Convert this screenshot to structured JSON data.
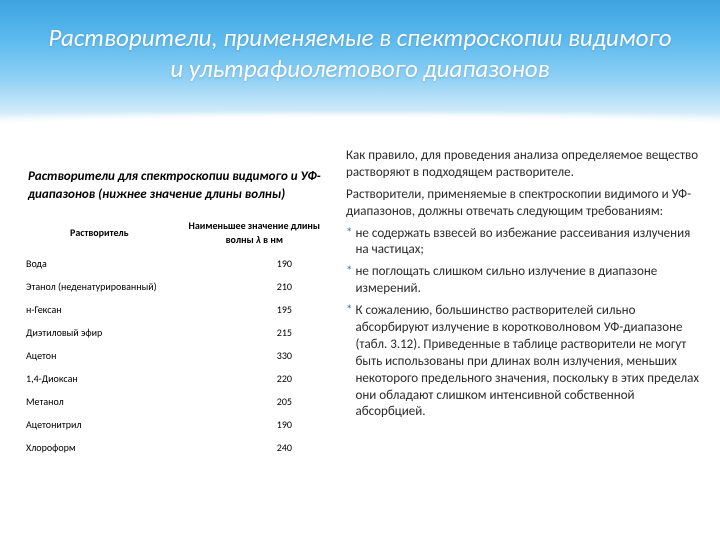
{
  "title": "Растворители, применяемые в спектроскопии видимого и ультрафиолетового диапазонов",
  "table": {
    "caption": "Растворители для спектроскопии видимого и УФ-диапазонов (нижнее значение длины волны)",
    "col1": "Растворитель",
    "col2_a": "Наименьшее значение длины",
    "col2_b": "волны",
    "col2_c": " в нм",
    "rows": [
      {
        "name": "Вода",
        "val": "190"
      },
      {
        "name": "Этанол (неденатурированный)",
        "val": "210"
      },
      {
        "name": "н-Гексан",
        "val": "195"
      },
      {
        "name": "Диэтиловый эфир",
        "val": "215"
      },
      {
        "name": "Ацетон",
        "val": "330"
      },
      {
        "name": "1,4-Диоксан",
        "val": "220"
      },
      {
        "name": "Метанол",
        "val": "205"
      },
      {
        "name": "Ацетонитрил",
        "val": "190"
      },
      {
        "name": "Хлороформ",
        "val": "240"
      }
    ]
  },
  "text": {
    "p1": "Как правило, для проведения анализа определяемое вещество растворяют в подходящем растворителе.",
    "p2": "Растворители, применяемые в спектроскопии видимого и УФ-диапазонов, должны отвечать следующим требованиям:",
    "b1": "не содержать взвесей во избежание рассеивания излучения на частицах;",
    "b2": " не поглощать слишком сильно излучение в диапазоне измерений.",
    "b3": "К сожалению, большинство растворителей сильно абсорбируют излучение в коротковолновом УФ-диапазоне (табл. 3.12). Приведенные в таблице растворители не могут быть использованы при длинах волн излучения, меньших некоторого предельного значения, поскольку в этих пределах они обладают слишком интенсивной собственной абсорбцией."
  }
}
